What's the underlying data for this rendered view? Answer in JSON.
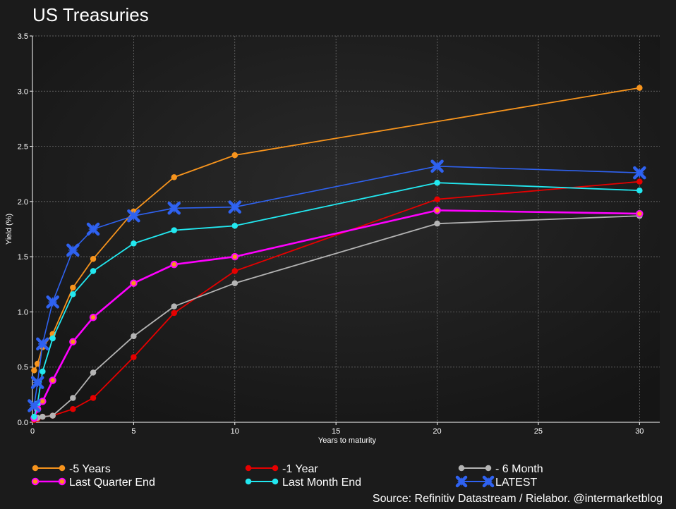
{
  "chart_data": {
    "type": "line",
    "title": "US Treasuries",
    "xlabel": "Years to maturity",
    "ylabel": "Yield (%)",
    "xlim": [
      0,
      31
    ],
    "ylim": [
      0,
      3.5
    ],
    "x_ticks": [
      0,
      5,
      10,
      15,
      20,
      25,
      30
    ],
    "y_ticks": [
      0.0,
      0.5,
      1.0,
      1.5,
      2.0,
      2.5,
      3.0,
      3.5
    ],
    "grid": true,
    "legend_position": "bottom",
    "source": "Source: Refinitiv Datastream /  Rielabor. @intermarketblog",
    "series": [
      {
        "name": "-5 Years",
        "color": "#f7941d",
        "marker": "circle",
        "x": [
          0.083,
          0.25,
          0.5,
          1,
          2,
          3,
          5,
          7,
          10,
          30
        ],
        "y": [
          0.47,
          0.53,
          0.68,
          0.8,
          1.22,
          1.48,
          1.91,
          2.22,
          2.42,
          3.03
        ]
      },
      {
        "name": "-1 Year",
        "color": "#e60000",
        "marker": "circle",
        "x": [
          0.083,
          0.25,
          0.5,
          1,
          2,
          3,
          5,
          7,
          10,
          20,
          30
        ],
        "y": [
          0.02,
          0.03,
          0.05,
          0.06,
          0.12,
          0.22,
          0.59,
          0.99,
          1.37,
          2.02,
          2.18
        ]
      },
      {
        "name": "- 6 Month",
        "color": "#b4b4b4",
        "marker": "circle",
        "x": [
          0.083,
          0.25,
          0.5,
          1,
          2,
          3,
          5,
          7,
          10,
          20,
          30
        ],
        "y": [
          0.03,
          0.04,
          0.05,
          0.06,
          0.22,
          0.45,
          0.78,
          1.05,
          1.26,
          1.8,
          1.87
        ]
      },
      {
        "name": "Last Quarter End",
        "color": "#ff00ff",
        "marker": "circle-ring",
        "x": [
          0.083,
          0.25,
          0.5,
          1,
          2,
          3,
          5,
          7,
          10,
          20,
          30
        ],
        "y": [
          0.04,
          0.12,
          0.19,
          0.38,
          0.73,
          0.95,
          1.26,
          1.43,
          1.5,
          1.92,
          1.89
        ]
      },
      {
        "name": "Last Month End",
        "color": "#22e8f0",
        "marker": "circle",
        "x": [
          0.083,
          0.25,
          0.5,
          1,
          2,
          3,
          5,
          7,
          10,
          20,
          30
        ],
        "y": [
          0.05,
          0.17,
          0.46,
          0.76,
          1.16,
          1.37,
          1.62,
          1.74,
          1.78,
          2.17,
          2.1
        ]
      },
      {
        "name": "LATEST",
        "color": "#2f62f0",
        "marker": "x",
        "x": [
          0.083,
          0.25,
          0.5,
          1,
          2,
          3,
          5,
          7,
          10,
          20,
          30
        ],
        "y": [
          0.15,
          0.36,
          0.71,
          1.09,
          1.56,
          1.75,
          1.87,
          1.94,
          1.95,
          2.32,
          2.26
        ]
      }
    ]
  },
  "colors": {
    "background": "#1b1b1b",
    "plot_background": "#262626",
    "grid": "#7a7a7a",
    "axis": "#ffffff",
    "text": "#ffffff"
  }
}
